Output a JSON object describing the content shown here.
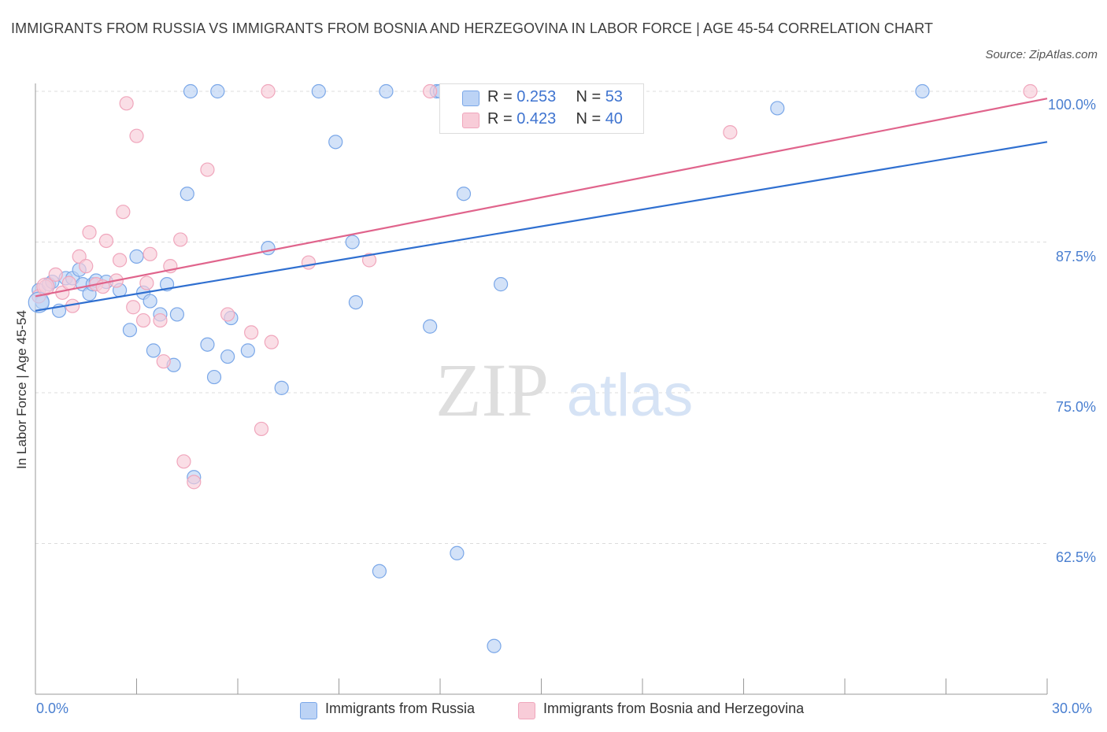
{
  "title": "IMMIGRANTS FROM RUSSIA VS IMMIGRANTS FROM BOSNIA AND HERZEGOVINA IN LABOR FORCE | AGE 45-54 CORRELATION CHART",
  "source": "Source: ZipAtlas.com",
  "watermark": {
    "zip": "ZIP",
    "atlas": "atlas"
  },
  "legend": {
    "rows": [
      {
        "r_label": "R =",
        "r_value": "0.253",
        "n_label": "N =",
        "n_value": "53"
      },
      {
        "r_label": "R =",
        "r_value": "0.423",
        "n_label": "N =",
        "n_value": "40"
      }
    ]
  },
  "chart_data": {
    "type": "scatter",
    "xlabel": "",
    "ylabel": "In Labor Force | Age 45-54",
    "xlim": [
      0,
      30
    ],
    "ylim": [
      50,
      100
    ],
    "x_tick_labels": [
      "0.0%",
      "30.0%"
    ],
    "y_ticks": [
      62.5,
      75.0,
      87.5,
      100.0
    ],
    "y_tick_labels": [
      "62.5%",
      "75.0%",
      "87.5%",
      "100.0%"
    ],
    "grid": true,
    "legend_position": "top-center",
    "series": [
      {
        "name": "Immigrants from Russia",
        "color": "#7aa7e8",
        "fill": "#bcd3f5",
        "trend": {
          "x": [
            0,
            30
          ],
          "y": [
            81.8,
            95.8
          ],
          "color": "#2f6fd0"
        },
        "points": [
          [
            0.1,
            83.5
          ],
          [
            0.2,
            82.5
          ],
          [
            0.4,
            84.0
          ],
          [
            0.5,
            84.2
          ],
          [
            0.7,
            81.8
          ],
          [
            0.9,
            84.5
          ],
          [
            1.1,
            84.5
          ],
          [
            1.3,
            85.2
          ],
          [
            1.4,
            84.0
          ],
          [
            1.6,
            83.2
          ],
          [
            1.7,
            84.0
          ],
          [
            1.8,
            84.3
          ],
          [
            2.1,
            84.2
          ],
          [
            2.5,
            83.5
          ],
          [
            2.8,
            80.2
          ],
          [
            3.0,
            86.3
          ],
          [
            3.2,
            83.3
          ],
          [
            3.4,
            82.6
          ],
          [
            3.5,
            78.5
          ],
          [
            3.7,
            81.5
          ],
          [
            3.9,
            84.0
          ],
          [
            4.1,
            77.3
          ],
          [
            4.2,
            81.5
          ],
          [
            4.5,
            91.5
          ],
          [
            4.6,
            100.0
          ],
          [
            4.7,
            68.0
          ],
          [
            5.1,
            79.0
          ],
          [
            5.3,
            76.3
          ],
          [
            5.4,
            100.0
          ],
          [
            5.7,
            78.0
          ],
          [
            5.8,
            81.2
          ],
          [
            6.3,
            78.5
          ],
          [
            6.9,
            87.0
          ],
          [
            7.3,
            75.4
          ],
          [
            8.4,
            100.0
          ],
          [
            8.9,
            95.8
          ],
          [
            9.4,
            87.5
          ],
          [
            9.5,
            82.5
          ],
          [
            10.2,
            60.2
          ],
          [
            10.4,
            100.0
          ],
          [
            11.7,
            80.5
          ],
          [
            11.9,
            100.0
          ],
          [
            12.0,
            100.0
          ],
          [
            12.5,
            61.7
          ],
          [
            12.7,
            91.5
          ],
          [
            13.0,
            100.0
          ],
          [
            13.6,
            54.0
          ],
          [
            13.8,
            84.0
          ],
          [
            14.1,
            100.0
          ],
          [
            14.3,
            100.0
          ],
          [
            16.6,
            100.0
          ],
          [
            22.0,
            98.6
          ],
          [
            26.3,
            100.0
          ]
        ]
      },
      {
        "name": "Immigrants from Bosnia and Herzegovina",
        "color": "#f0a6bc",
        "fill": "#f8ccd8",
        "trend": {
          "x": [
            0,
            30
          ],
          "y": [
            83.0,
            99.4
          ],
          "color": "#e0648c"
        },
        "points": [
          [
            0.1,
            83.0
          ],
          [
            0.3,
            83.8
          ],
          [
            0.6,
            84.8
          ],
          [
            0.8,
            83.3
          ],
          [
            1.0,
            84.1
          ],
          [
            1.1,
            82.2
          ],
          [
            1.3,
            86.3
          ],
          [
            1.5,
            85.5
          ],
          [
            1.6,
            88.3
          ],
          [
            1.8,
            84.0
          ],
          [
            2.0,
            83.8
          ],
          [
            2.1,
            87.6
          ],
          [
            2.4,
            84.3
          ],
          [
            2.5,
            86.0
          ],
          [
            2.6,
            90.0
          ],
          [
            2.7,
            99.0
          ],
          [
            2.9,
            82.1
          ],
          [
            3.0,
            96.3
          ],
          [
            3.2,
            81.0
          ],
          [
            3.3,
            84.1
          ],
          [
            3.4,
            86.5
          ],
          [
            3.7,
            81.0
          ],
          [
            3.8,
            77.6
          ],
          [
            4.0,
            85.5
          ],
          [
            4.3,
            87.7
          ],
          [
            4.4,
            69.3
          ],
          [
            4.7,
            67.6
          ],
          [
            5.1,
            93.5
          ],
          [
            5.7,
            81.5
          ],
          [
            6.4,
            80.0
          ],
          [
            6.7,
            72.0
          ],
          [
            6.9,
            100.0
          ],
          [
            7.0,
            79.2
          ],
          [
            8.1,
            85.8
          ],
          [
            9.9,
            86.0
          ],
          [
            11.7,
            100.0
          ],
          [
            12.7,
            100.0
          ],
          [
            14.6,
            100.0
          ],
          [
            20.6,
            96.6
          ],
          [
            29.5,
            100.0
          ]
        ]
      }
    ]
  }
}
